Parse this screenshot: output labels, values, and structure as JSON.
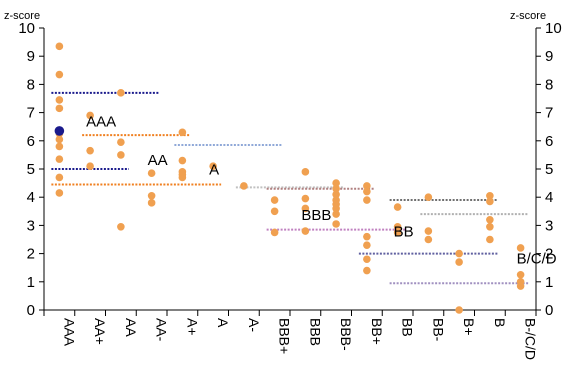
{
  "chart_data": {
    "type": "scatter",
    "y_unit_label": "z-score",
    "ylim": [
      0,
      10
    ],
    "y_ticks": [
      0,
      1,
      2,
      3,
      4,
      5,
      6,
      7,
      8,
      9,
      10
    ],
    "categories": [
      "AAA",
      "AA+",
      "AA",
      "AA-",
      "A+",
      "A",
      "A-",
      "BBB+",
      "BBB",
      "BBB-",
      "BB+",
      "BB",
      "BB-",
      "B+",
      "B",
      "B-/C/D"
    ],
    "points_color": "#F0A050",
    "series": [
      {
        "category": "AAA",
        "values": [
          9.35,
          8.35,
          7.45,
          7.15,
          6.35,
          6.25,
          6.05,
          5.8,
          5.35,
          4.7,
          4.15
        ]
      },
      {
        "category": "AA+",
        "values": [
          6.9,
          5.65,
          5.1
        ]
      },
      {
        "category": "AA",
        "values": [
          7.7,
          5.95,
          5.5,
          2.95
        ]
      },
      {
        "category": "AA-",
        "values": [
          4.85,
          4.05,
          3.8
        ]
      },
      {
        "category": "A+",
        "values": [
          6.3,
          5.3,
          4.9,
          4.8,
          4.7
        ]
      },
      {
        "category": "A",
        "values": [
          5.1
        ]
      },
      {
        "category": "A-",
        "values": [
          4.4
        ]
      },
      {
        "category": "BBB+",
        "values": [
          3.9,
          3.5,
          2.75
        ]
      },
      {
        "category": "BBB",
        "values": [
          4.9,
          3.95,
          3.6,
          2.8
        ]
      },
      {
        "category": "BBB-",
        "values": [
          4.5,
          4.3,
          4.1,
          3.9,
          3.75,
          3.6,
          3.4,
          3.05
        ]
      },
      {
        "category": "BB+",
        "values": [
          4.4,
          4.2,
          3.9,
          2.6,
          2.3,
          1.8,
          1.4
        ]
      },
      {
        "category": "BB",
        "values": [
          3.65,
          2.95,
          2.75
        ]
      },
      {
        "category": "BB-",
        "values": [
          4.0,
          2.8,
          2.5
        ]
      },
      {
        "category": "B+",
        "values": [
          2.0,
          1.7,
          0.0
        ]
      },
      {
        "category": "B",
        "values": [
          4.05,
          3.85,
          3.2,
          2.95,
          2.5
        ]
      },
      {
        "category": "B-/C/D",
        "values": [
          2.2,
          1.25,
          1.0,
          0.85
        ]
      }
    ],
    "highlight_point": {
      "category": "AAA",
      "value": 6.35,
      "color": "#1A1A8C"
    },
    "mean_lines": [
      {
        "label": "AAA",
        "value": 7.7,
        "from": "AAA",
        "to": "AA-",
        "color": "#1A1A8C"
      },
      {
        "label": "AAA",
        "value": 6.2,
        "from": "AA+",
        "to": "A+",
        "color": "#F08020"
      },
      {
        "label": "AA",
        "value": 5.0,
        "from": "AAA",
        "to": "AA",
        "color": "#1A1A8C"
      },
      {
        "label": "AA",
        "value": 4.45,
        "from": "AAA",
        "to": "A",
        "color": "#F08020"
      },
      {
        "label": "A",
        "value": 5.85,
        "from": "A+",
        "to": "BBB+",
        "color": "#8FA8D8"
      },
      {
        "label": "A",
        "value": 4.35,
        "from": "A-",
        "to": "BBB-",
        "color": "#C0C0C0"
      },
      {
        "label": "BBB",
        "value": 4.3,
        "from": "BBB+",
        "to": "BB+",
        "color": "#B08080"
      },
      {
        "label": "BBB",
        "value": 2.85,
        "from": "BBB+",
        "to": "BB",
        "color": "#C080C0"
      },
      {
        "label": "BB",
        "value": 3.9,
        "from": "BB",
        "to": "B",
        "color": "#707070"
      },
      {
        "label": "BB",
        "value": 2.0,
        "from": "BB+",
        "to": "B",
        "color": "#6060A0"
      },
      {
        "label": "B/C/D",
        "value": 3.4,
        "from": "BB-",
        "to": "B-/C/D",
        "color": "#B0B0B0"
      },
      {
        "label": "B/C/D",
        "value": 0.95,
        "from": "BB",
        "to": "B-/C/D",
        "color": "#A090C0"
      }
    ],
    "annotations": [
      {
        "text": "AAA",
        "category": "AA+",
        "value": 6.5
      },
      {
        "text": "AA",
        "category": "AA-",
        "value": 5.15
      },
      {
        "text": "A",
        "category": "A",
        "value": 4.8
      },
      {
        "text": "BBB",
        "category": "BBB",
        "value": 3.2
      },
      {
        "text": "BB",
        "category": "BB",
        "value": 2.6
      },
      {
        "text": "B/C/D",
        "category": "B-/C/D",
        "value": 1.65
      }
    ],
    "grid": false,
    "legend": "none"
  }
}
